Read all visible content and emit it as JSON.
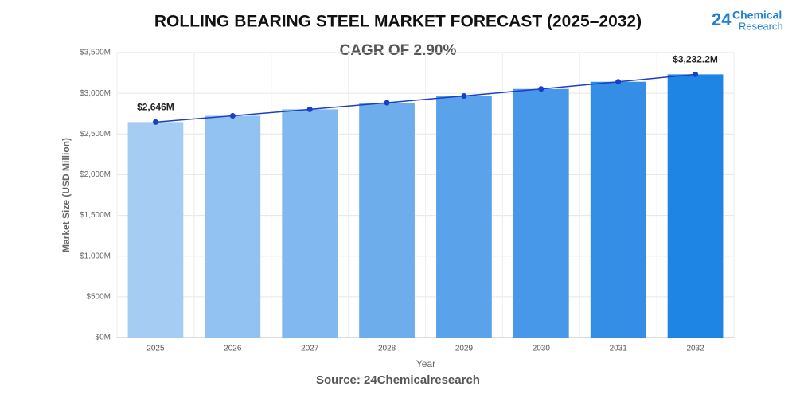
{
  "chart_data": {
    "type": "bar",
    "title": "ROLLING BEARING STEEL MARKET FORECAST (2025–2032)",
    "subtitle": "CAGR OF 2.90%",
    "source": "Source: 24Chemicalresearch",
    "x_label": "Year",
    "y_label": "Market Size (USD Million)",
    "categories": [
      "2025",
      "2026",
      "2027",
      "2028",
      "2029",
      "2030",
      "2031",
      "2032"
    ],
    "values": [
      2646,
      2723,
      2802,
      2883,
      2967,
      3053,
      3141,
      3232.2
    ],
    "value_labels": [
      "$2,646M",
      null,
      null,
      null,
      null,
      null,
      null,
      "$3,232.2M"
    ],
    "colors": [
      "#a5cdf4",
      "#92c2f2",
      "#80b8ef",
      "#6dadec",
      "#5aa3ea",
      "#4798e8",
      "#348ee6",
      "#1f85e4"
    ],
    "trend_line": true,
    "line_color": "#1a3fc4",
    "ylim": [
      0,
      3500
    ],
    "yticks": [
      {
        "value": 0,
        "label": "$0M"
      },
      {
        "value": 500,
        "label": "$500M"
      },
      {
        "value": 1000,
        "label": "$1,000M"
      },
      {
        "value": 1500,
        "label": "$1,500M"
      },
      {
        "value": 2000,
        "label": "$2,000M"
      },
      {
        "value": 2500,
        "label": "$2,500M"
      },
      {
        "value": 3000,
        "label": "$3,000M"
      },
      {
        "value": 3500,
        "label": "$3,500M"
      }
    ],
    "grid": true
  },
  "logo": {
    "number": "24",
    "line1": "Chemical",
    "line2": "Research"
  }
}
